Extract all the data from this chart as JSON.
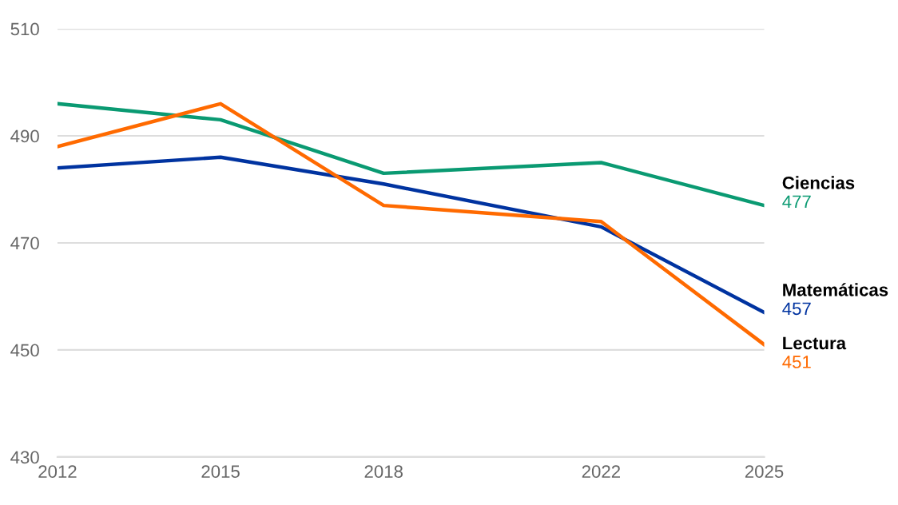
{
  "chart_data": {
    "type": "line",
    "x": [
      2012,
      2015,
      2018,
      2022,
      2025
    ],
    "xlim": [
      2012,
      2025
    ],
    "xticks": [
      2012,
      2015,
      2018,
      2022,
      2025
    ],
    "ylim": [
      430,
      510
    ],
    "yticks": [
      430,
      450,
      470,
      490,
      510
    ],
    "grid": "y",
    "legend": false,
    "marker": "none",
    "line_style": "solid",
    "series": [
      {
        "name": "Ciencias",
        "color": "#0a9a72",
        "values": [
          496,
          493,
          483,
          485,
          477
        ],
        "value_labels": [
          null,
          null,
          null,
          null,
          "477"
        ]
      },
      {
        "name": "Matemáticas",
        "color": "#0033a0",
        "values": [
          484,
          486,
          481,
          473,
          457
        ],
        "value_labels": [
          null,
          null,
          null,
          null,
          "457"
        ]
      },
      {
        "name": "Lectura",
        "color": "#ff6a00",
        "values": [
          488,
          496,
          477,
          474,
          451
        ],
        "value_labels": [
          null,
          null,
          null,
          null,
          "451"
        ]
      }
    ]
  }
}
